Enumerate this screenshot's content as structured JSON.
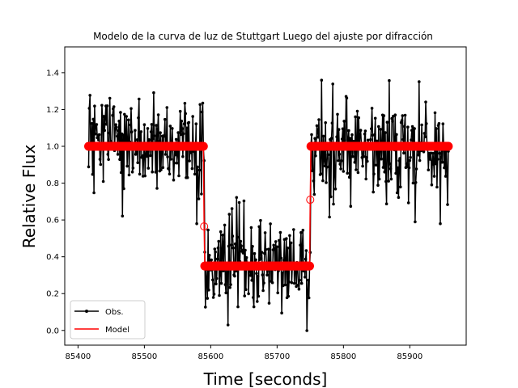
{
  "chart_data": {
    "type": "line",
    "title": "Modelo de la curva de luz de Stuttgart Luego del ajuste por difracción",
    "xlabel": "Time [seconds]",
    "ylabel": "Relative Flux",
    "xlim": [
      85380,
      85985
    ],
    "ylim": [
      -0.08,
      1.54
    ],
    "xticks": [
      85400,
      85500,
      85600,
      85700,
      85800,
      85900
    ],
    "yticks": [
      0.0,
      0.2,
      0.4,
      0.6,
      0.8,
      1.0,
      1.2,
      1.4
    ],
    "legend_position": "lower-left",
    "series": [
      {
        "name": "Obs.",
        "color": "#000000",
        "style": "line-with-dot-markers",
        "x_start": 85416,
        "x_step": 1,
        "x_end": 85958,
        "segments": [
          {
            "x_from": 85416,
            "x_to": 85590,
            "mean": 1.0,
            "noise_sd": 0.13
          },
          {
            "x_from": 85591,
            "x_to": 85750,
            "mean": 0.35,
            "noise_sd": 0.12
          },
          {
            "x_from": 85751,
            "x_to": 85958,
            "mean": 1.0,
            "noise_sd": 0.14
          }
        ]
      },
      {
        "name": "Model",
        "color": "#ff0000",
        "style": "step-line-with-circle-markers",
        "x": [
          85416,
          85589,
          85590,
          85591,
          85749,
          85750,
          85751,
          85958
        ],
        "y": [
          1.0,
          1.0,
          0.565,
          0.35,
          0.35,
          0.71,
          1.0,
          1.0
        ]
      }
    ]
  },
  "legend": {
    "items": [
      {
        "label": "Obs.",
        "color": "#000000"
      },
      {
        "label": "Model",
        "color": "#ff0000"
      }
    ]
  }
}
